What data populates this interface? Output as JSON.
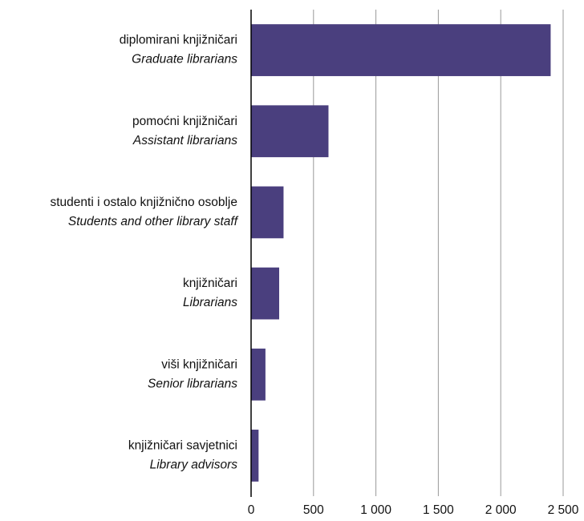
{
  "chart_data": {
    "type": "bar",
    "orientation": "horizontal",
    "categories": [
      "diplomirani knjižničari",
      "pomoćni knjižničari",
      "studenti i ostalo knjižnično osoblje",
      "knjižničari",
      "viši knjižničari",
      "knjižničari savjetnici"
    ],
    "category_translations": [
      "Graduate librarians",
      "Assistant librarians",
      "Students and other library staff",
      "Librarians",
      "Senior librarians",
      "Library advisors"
    ],
    "values": [
      2400,
      620,
      260,
      225,
      115,
      60
    ],
    "color": "#4a3f7e",
    "xlim": [
      0,
      2500
    ],
    "xticks": [
      0,
      500,
      {
        "value": 1000,
        "label": "1 000"
      },
      {
        "value": 1500,
        "label": "1 500"
      },
      {
        "value": 2000,
        "label": "2 000"
      },
      {
        "value": 2500,
        "label": "2 500"
      }
    ],
    "grid": true
  }
}
